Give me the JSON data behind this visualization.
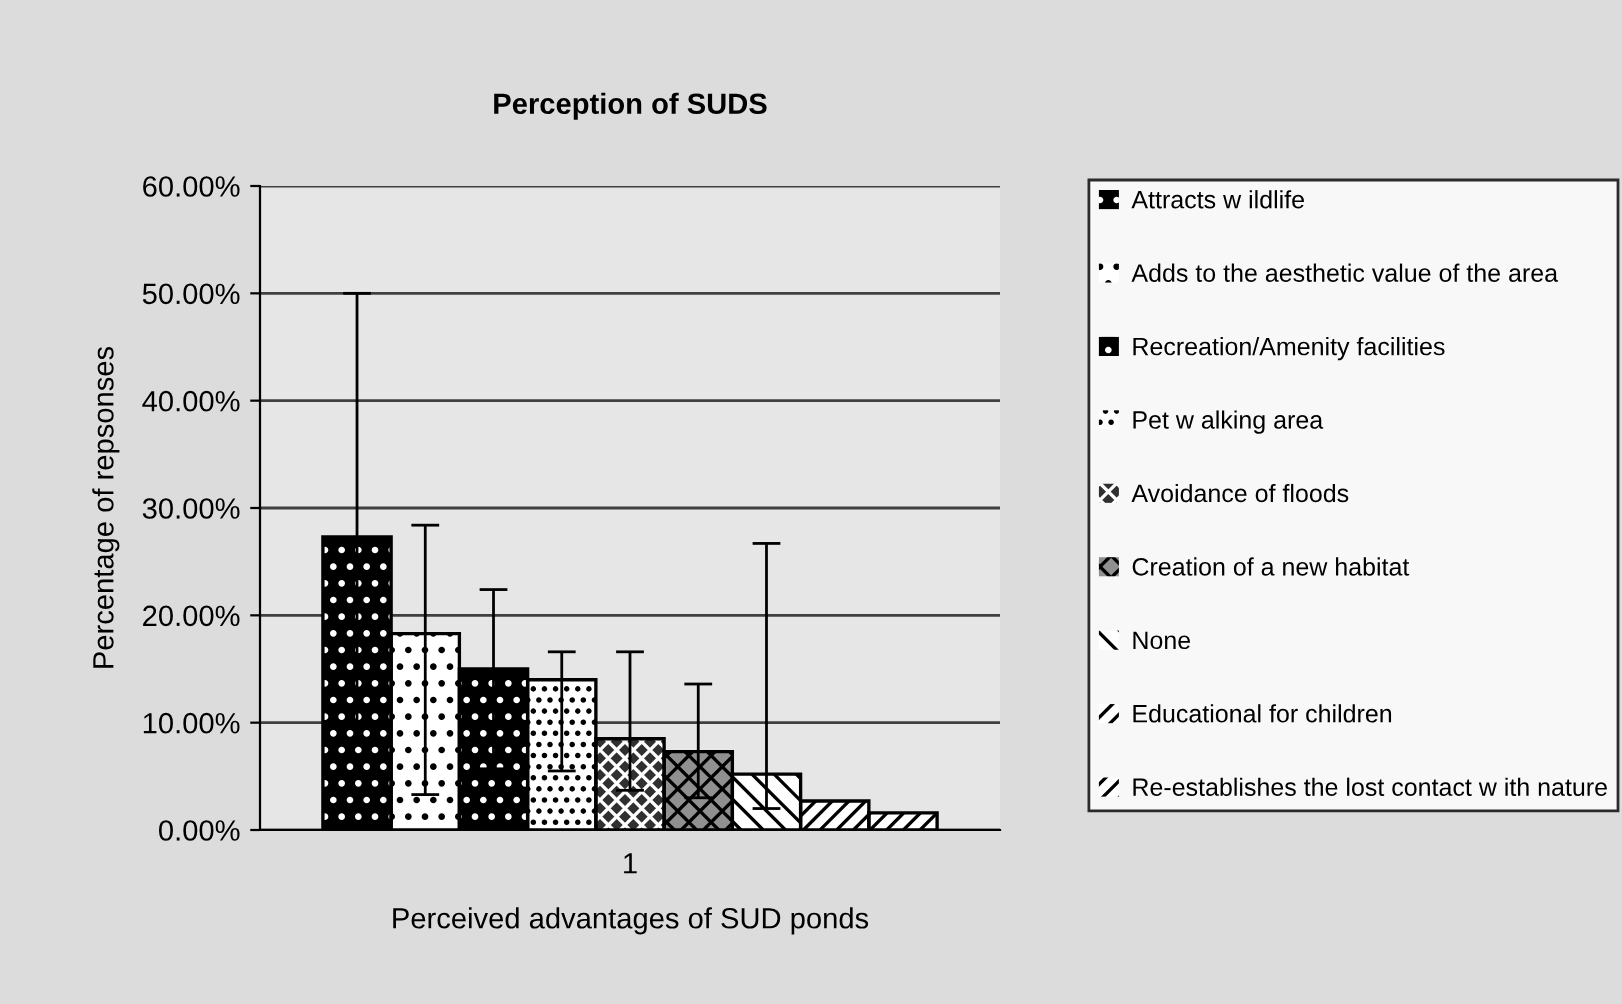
{
  "chart_data": {
    "type": "bar",
    "title": "Perception of SUDS",
    "xlabel": "Perceived advantages of SUD ponds",
    "ylabel": "Percentage of repsonses",
    "categories": [
      "1"
    ],
    "series": [
      {
        "name": "Attracts w ildlife",
        "color": "#000000",
        "values": [
          27.3
        ],
        "errors": [
          [
            10.1,
            50.0
          ]
        ]
      },
      {
        "name": "Adds to the aesthetic value of the area",
        "color": "#ffffff",
        "values": [
          18.3
        ],
        "errors": [
          [
            3.3,
            28.4
          ]
        ]
      },
      {
        "name": "Recreation/Amenity facilities",
        "color": "#000000",
        "values": [
          15.0
        ],
        "errors": [
          [
            5.7,
            22.4
          ]
        ]
      },
      {
        "name": "Pet w alking area",
        "color": "#ffffff",
        "values": [
          14.0
        ],
        "errors": [
          [
            5.5,
            16.6
          ]
        ]
      },
      {
        "name": "Avoidance of floods",
        "color": "#303030",
        "values": [
          8.5
        ],
        "errors": [
          [
            3.7,
            16.6
          ]
        ]
      },
      {
        "name": "Creation of a new habitat",
        "color": "#909090",
        "values": [
          7.3
        ],
        "errors": [
          [
            3.0,
            13.6
          ]
        ]
      },
      {
        "name": "None",
        "color": "#ffffff",
        "values": [
          5.2
        ],
        "errors": [
          [
            2.0,
            26.7
          ]
        ]
      },
      {
        "name": "Educational for children",
        "color": "#ffffff",
        "values": [
          2.7
        ]
      },
      {
        "name": "Re-establishes the lost contact w ith nature",
        "color": "#ffffff",
        "values": [
          1.6
        ]
      }
    ],
    "ylim": [
      0,
      60
    ],
    "yticks": [
      {
        "value": 0,
        "label": "0.00%"
      },
      {
        "value": 10,
        "label": "10.00%"
      },
      {
        "value": 20,
        "label": "20.00%"
      },
      {
        "value": 30,
        "label": "30.00%"
      },
      {
        "value": 40,
        "label": "40.00%"
      },
      {
        "value": 50,
        "label": "50.00%"
      },
      {
        "value": 60,
        "label": "60.00%"
      }
    ],
    "grid": "y",
    "legend": "right"
  }
}
